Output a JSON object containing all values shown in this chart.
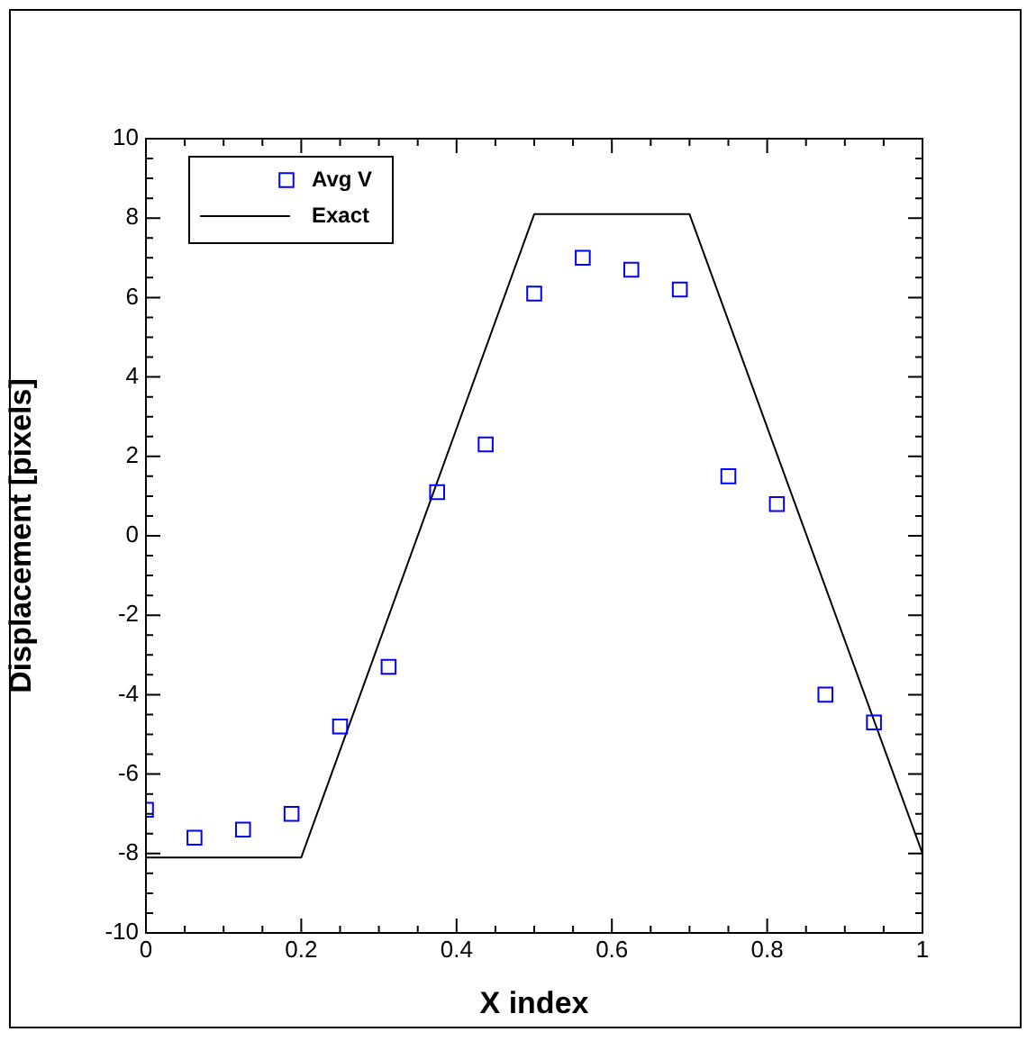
{
  "chart_data": {
    "type": "scatter",
    "xlabel": "X index",
    "ylabel": "Displacement [pixels]",
    "xlim": [
      0,
      1
    ],
    "ylim": [
      -10,
      10
    ],
    "xticks": [
      0,
      0.2,
      0.4,
      0.6,
      0.8,
      1
    ],
    "yticks": [
      -10,
      -8,
      -6,
      -4,
      -2,
      0,
      2,
      4,
      6,
      8,
      10
    ],
    "grid": false,
    "legend": "top left",
    "series": [
      {
        "name": "Avg V",
        "type": "scatter",
        "marker": "square",
        "color": "#0000ff",
        "x": [
          0,
          0.0625,
          0.125,
          0.1875,
          0.25,
          0.3125,
          0.375,
          0.4375,
          0.5,
          0.5625,
          0.625,
          0.6875,
          0.75,
          0.8125,
          0.875,
          0.9375
        ],
        "values": [
          -6.9,
          -7.6,
          -7.4,
          -7.0,
          -4.8,
          -3.3,
          1.1,
          2.3,
          6.1,
          7.0,
          6.7,
          6.2,
          1.5,
          0.8,
          -4.0,
          -4.7
        ]
      },
      {
        "name": "Exact",
        "type": "line",
        "marker": "none",
        "line_style": "solid",
        "color": "#000000",
        "x": [
          0,
          0.2,
          0.5,
          0.7,
          1
        ],
        "values": [
          -8.1,
          -8.1,
          8.1,
          8.1,
          -8.0
        ]
      }
    ]
  }
}
